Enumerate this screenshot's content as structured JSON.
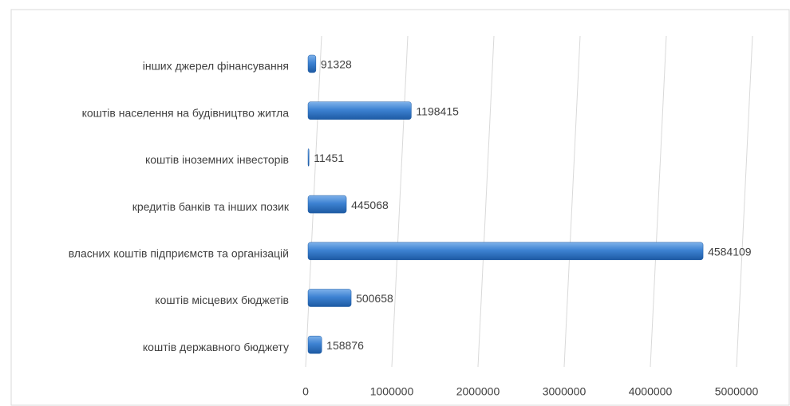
{
  "chart_data": {
    "type": "bar",
    "orientation": "horizontal",
    "categories": [
      "інших джерел фінансування",
      "коштів населення на будівництво житла",
      "коштів іноземних інвесторів",
      "кредитів банків та інших позик",
      "власних коштів підприємств та організацій",
      "коштів місцевих бюджетів",
      "коштів державного бюджету"
    ],
    "values": [
      91328,
      1198415,
      11451,
      445068,
      4584109,
      500658,
      158876
    ],
    "color": "#2f75c9",
    "xlim": [
      0,
      5000000
    ],
    "xticks": [
      0,
      1000000,
      2000000,
      3000000,
      4000000,
      5000000
    ],
    "grid": true
  }
}
